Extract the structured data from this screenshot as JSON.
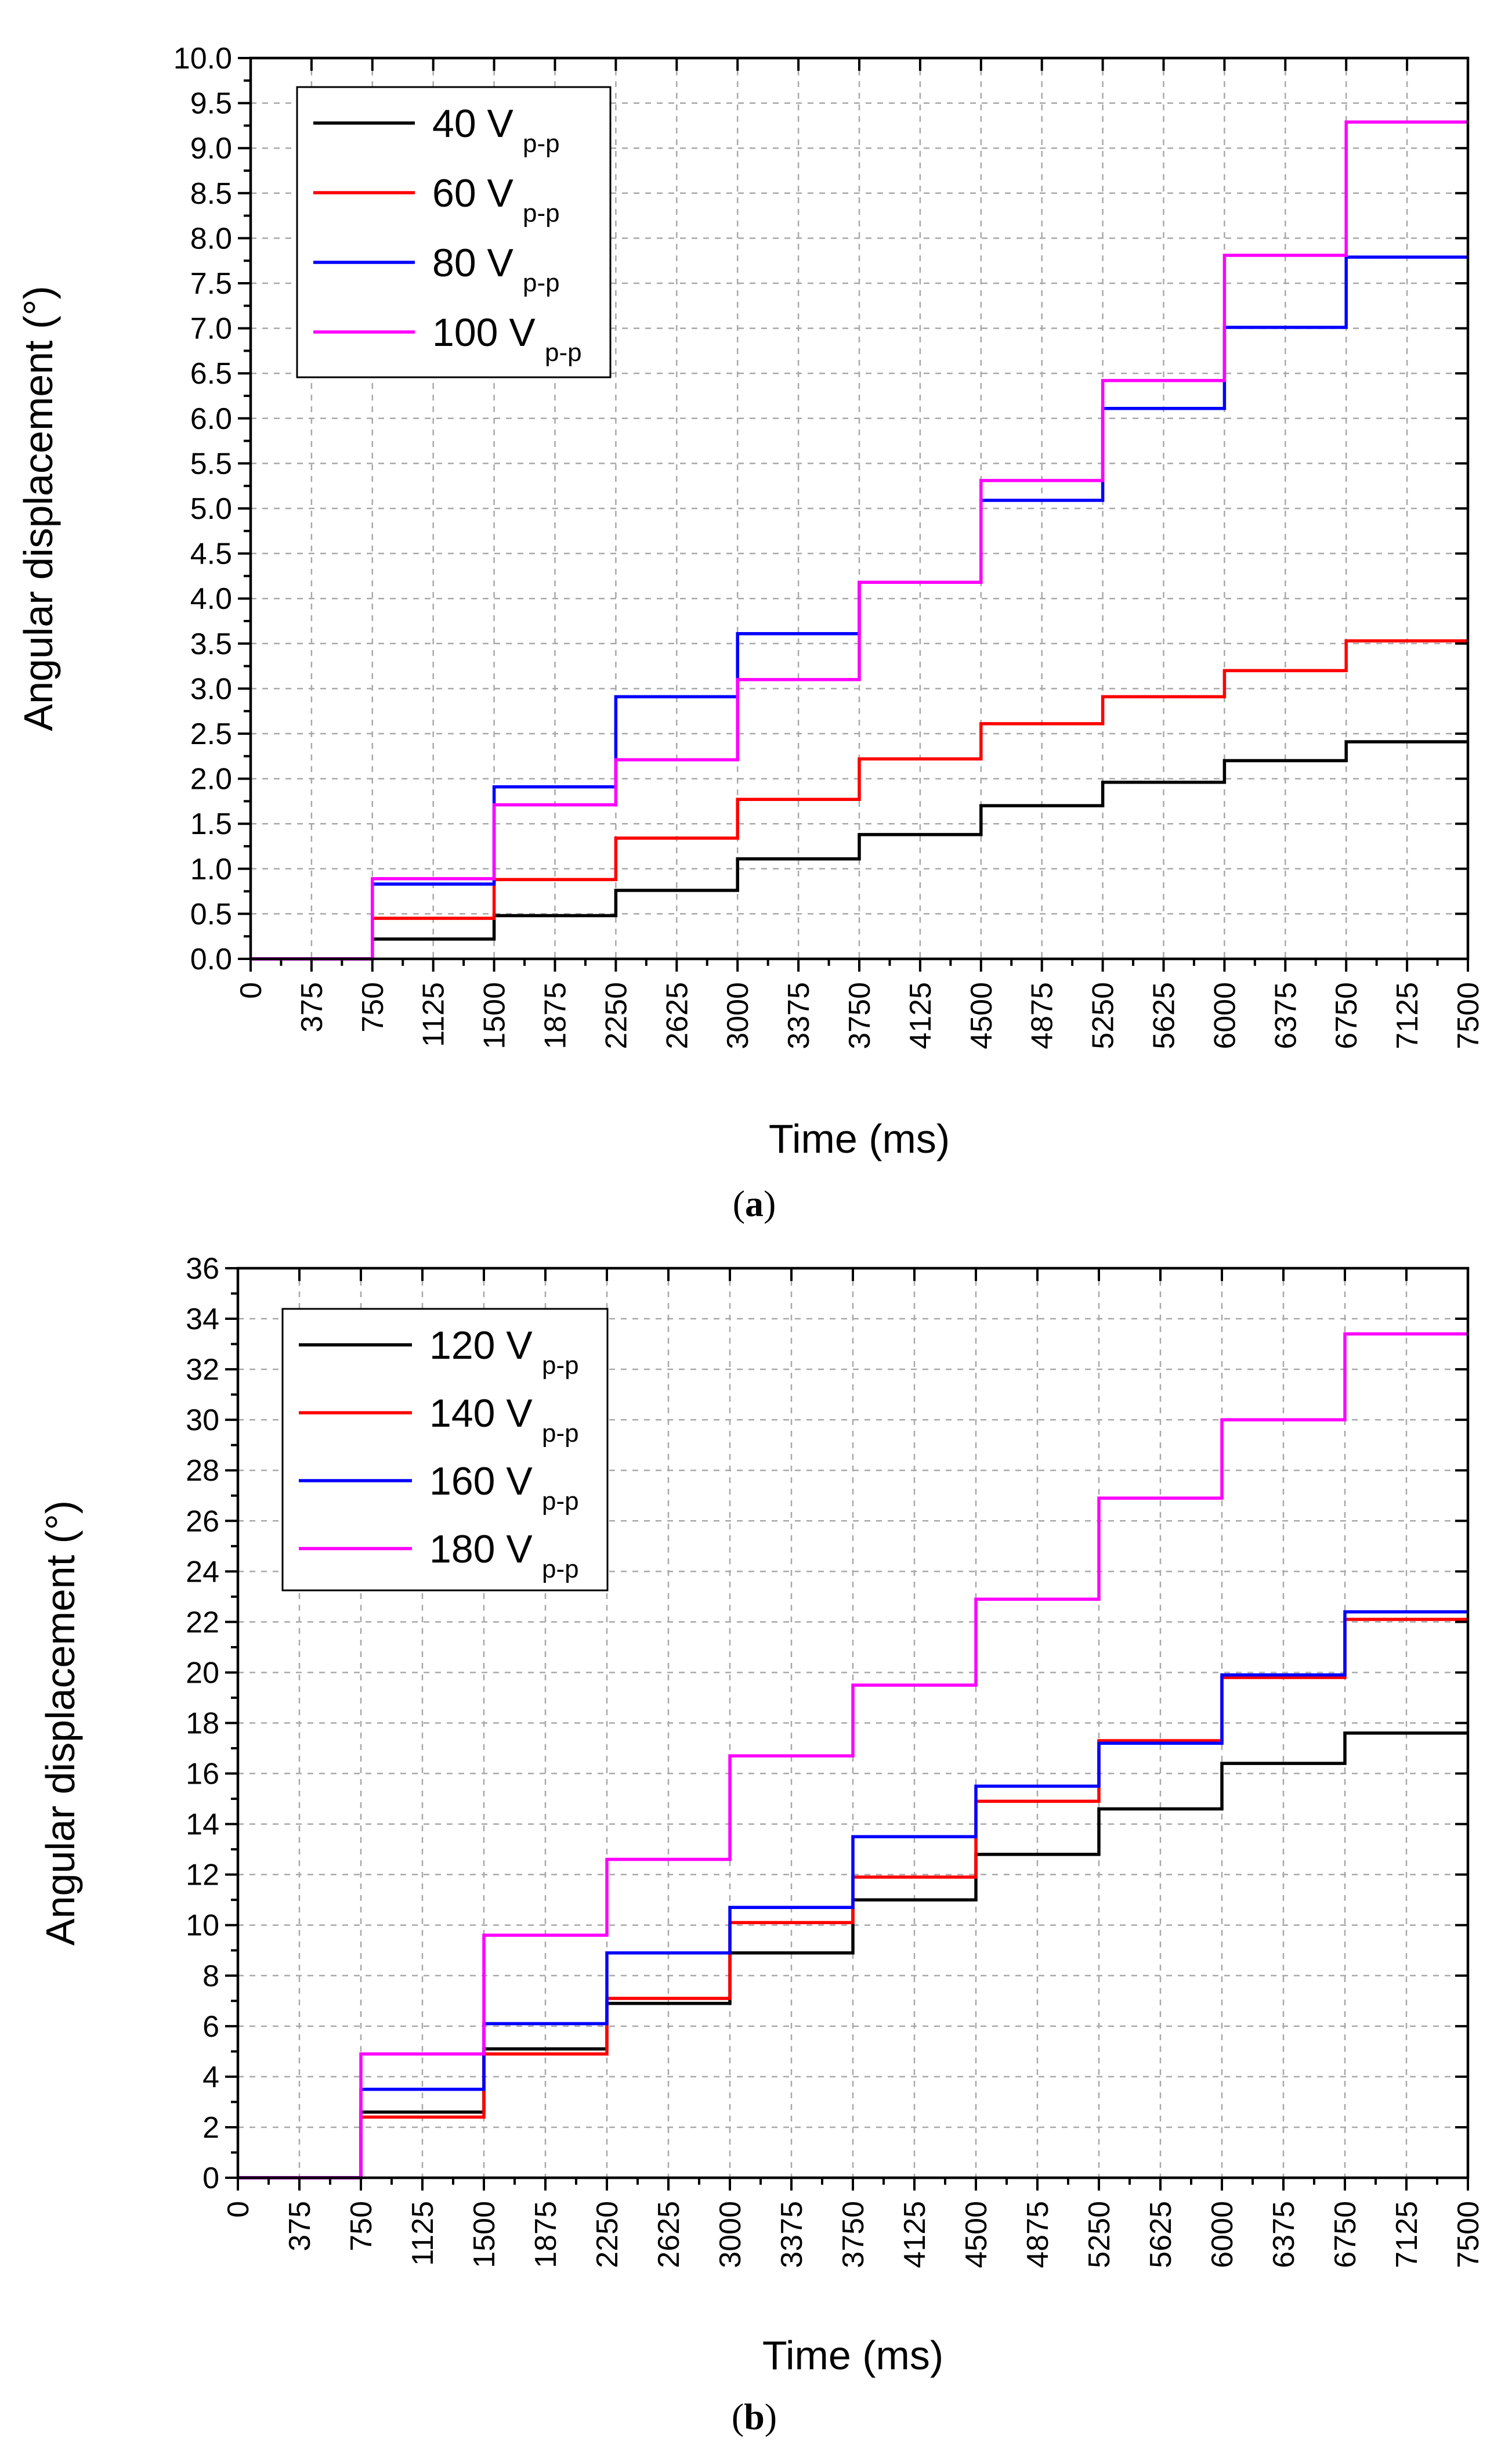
{
  "chart_data": [
    {
      "type": "line",
      "panel_label": "a",
      "xlabel": "Time (ms)",
      "ylabel": "Angular displacement (°)",
      "xlim": [
        0,
        7500
      ],
      "ylim": [
        0,
        10
      ],
      "x_ticks": [
        "0",
        "375",
        "750",
        "1125",
        "1500",
        "1875",
        "2250",
        "2625",
        "3000",
        "3375",
        "3750",
        "4125",
        "4500",
        "4875",
        "5250",
        "5625",
        "6000",
        "6375",
        "6750",
        "7125",
        "7500"
      ],
      "y_ticks": [
        "0.0",
        "0.5",
        "1.0",
        "1.5",
        "2.0",
        "2.5",
        "3.0",
        "3.5",
        "4.0",
        "4.5",
        "5.0",
        "5.5",
        "6.0",
        "6.5",
        "7.0",
        "7.5",
        "8.0",
        "8.5",
        "9.0",
        "9.5",
        "10.0"
      ],
      "grid": true,
      "legend_position": "top-left",
      "step_times": [
        0,
        750,
        1500,
        2250,
        3000,
        3750,
        4500,
        5250,
        6000,
        6750,
        7500
      ],
      "series": [
        {
          "name": "40 V",
          "subscript": "p-p",
          "color": "#000000",
          "values": [
            0,
            0.22,
            0.48,
            0.76,
            1.11,
            1.38,
            1.7,
            1.96,
            2.2,
            2.41
          ]
        },
        {
          "name": "60 V",
          "subscript": "p-p",
          "color": "#ff0000",
          "values": [
            0,
            0.45,
            0.88,
            1.34,
            1.77,
            2.22,
            2.61,
            2.91,
            3.2,
            3.53
          ]
        },
        {
          "name": "80 V",
          "subscript": "p-p",
          "color": "#0000ff",
          "values": [
            0,
            0.83,
            1.91,
            2.91,
            3.61,
            4.18,
            5.09,
            6.11,
            7.01,
            7.79
          ]
        },
        {
          "name": "100 V",
          "subscript": "p-p",
          "color": "#ff00ff",
          "values": [
            0,
            0.89,
            1.71,
            2.21,
            3.1,
            4.18,
            5.31,
            6.42,
            7.81,
            9.29
          ]
        }
      ]
    },
    {
      "type": "line",
      "panel_label": "b",
      "xlabel": "Time (ms)",
      "ylabel": "Angular displacement (°)",
      "xlim": [
        0,
        7500
      ],
      "ylim": [
        0,
        36
      ],
      "x_ticks": [
        "0",
        "375",
        "750",
        "1125",
        "1500",
        "1875",
        "2250",
        "2625",
        "3000",
        "3375",
        "3750",
        "4125",
        "4500",
        "4875",
        "5250",
        "5625",
        "6000",
        "6375",
        "6750",
        "7125",
        "7500"
      ],
      "y_ticks": [
        "0",
        "2",
        "4",
        "6",
        "8",
        "10",
        "12",
        "14",
        "16",
        "18",
        "20",
        "22",
        "24",
        "26",
        "28",
        "30",
        "32",
        "34",
        "36"
      ],
      "grid": true,
      "legend_position": "top-left",
      "step_times": [
        0,
        750,
        1500,
        2250,
        3000,
        3750,
        4500,
        5250,
        6000,
        6750,
        7500
      ],
      "series": [
        {
          "name": "120 V",
          "subscript": "p-p",
          "color": "#000000",
          "values": [
            0,
            2.6,
            5.1,
            6.9,
            8.9,
            11.0,
            12.8,
            14.6,
            16.4,
            17.6
          ]
        },
        {
          "name": "140 V",
          "subscript": "p-p",
          "color": "#ff0000",
          "values": [
            0,
            2.4,
            4.9,
            7.1,
            10.1,
            11.9,
            14.9,
            17.3,
            19.8,
            22.1
          ]
        },
        {
          "name": "160 V",
          "subscript": "p-p",
          "color": "#0000ff",
          "values": [
            0,
            3.5,
            6.1,
            8.9,
            10.7,
            13.5,
            15.5,
            17.2,
            19.9,
            22.4
          ]
        },
        {
          "name": "180 V",
          "subscript": "p-p",
          "color": "#ff00ff",
          "values": [
            0,
            4.9,
            9.6,
            12.6,
            16.7,
            19.5,
            22.9,
            26.9,
            30.0,
            33.4
          ]
        }
      ]
    }
  ]
}
